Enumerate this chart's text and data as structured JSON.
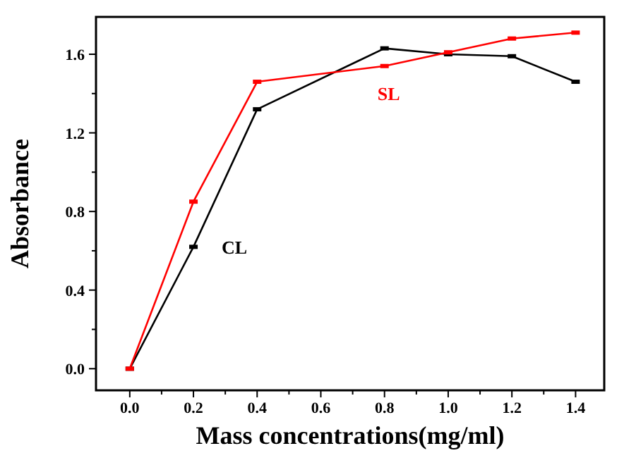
{
  "chart_data": {
    "type": "line",
    "xlabel": "Mass concentrations(mg/ml)",
    "ylabel": "Absorbance",
    "xlim": [
      -0.106,
      1.49
    ],
    "ylim": [
      -0.11,
      1.79
    ],
    "xticks": [
      {
        "value": 0,
        "label": "0.0"
      },
      0.2,
      0.4,
      0.6,
      0.8,
      {
        "value": 1,
        "label": "1.0"
      },
      1.2,
      1.4
    ],
    "yticks": [
      {
        "value": 0,
        "label": "0.0"
      },
      0.4,
      0.8,
      1.2,
      1.6
    ],
    "marker": "square",
    "line_style": "solid",
    "grid": false,
    "series": [
      {
        "name": "CL",
        "color": "#000000",
        "x": [
          0,
          0.2,
          0.4,
          0.8,
          1.0,
          1.2,
          1.4
        ],
        "values": [
          0,
          0.62,
          1.32,
          1.63,
          1.6,
          1.59,
          1.46
        ]
      },
      {
        "name": "SL",
        "color": "#ff0000",
        "x": [
          0,
          0.2,
          0.4,
          0.8,
          1.0,
          1.2,
          1.4
        ],
        "values": [
          0,
          0.85,
          1.46,
          1.54,
          1.61,
          1.68,
          1.71
        ]
      }
    ]
  }
}
